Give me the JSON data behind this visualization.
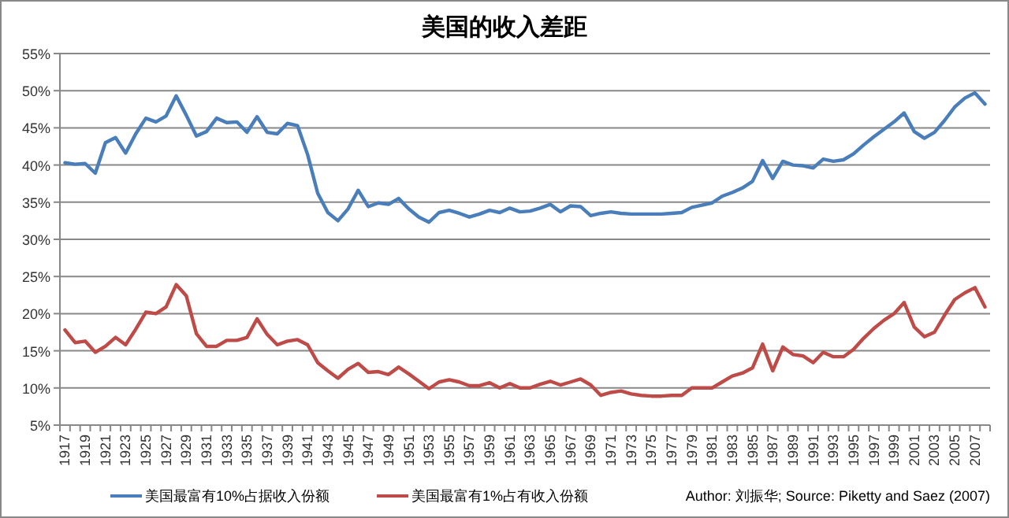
{
  "chart_data": {
    "type": "line",
    "title": "美国的收入差距",
    "categories": [
      "1917",
      null,
      "1919",
      null,
      "1921",
      null,
      "1923",
      null,
      "1925",
      null,
      "1927",
      null,
      "1929",
      null,
      "1931",
      null,
      "1933",
      null,
      "1935",
      null,
      "1937",
      null,
      "1939",
      null,
      "1941",
      null,
      "1943",
      null,
      "1945",
      null,
      "1947",
      null,
      "1949",
      null,
      "1951",
      null,
      "1953",
      null,
      "1955",
      null,
      "1957",
      null,
      "1959",
      null,
      "1961",
      null,
      "1963",
      null,
      "1965",
      null,
      "1967",
      null,
      "1969",
      null,
      "1971",
      null,
      "1973",
      null,
      "1975",
      null,
      "1977",
      null,
      "1979",
      null,
      "1981",
      null,
      "1983",
      null,
      "1985",
      null,
      "1987",
      null,
      "1989",
      null,
      "1991",
      null,
      "1993",
      null,
      "1995",
      null,
      "1997",
      null,
      "1999",
      null,
      "2001",
      null,
      "2003",
      null,
      "2005",
      null,
      "2007",
      null
    ],
    "series": [
      {
        "name": "美国最富有10%占据收入份额",
        "color": "#4a7ebb",
        "values": [
          40.3,
          40.1,
          40.2,
          38.9,
          43.0,
          43.7,
          41.6,
          44.2,
          46.3,
          45.8,
          46.6,
          49.3,
          46.7,
          43.9,
          44.5,
          46.3,
          45.7,
          45.8,
          44.4,
          46.5,
          44.4,
          44.2,
          45.6,
          45.3,
          41.4,
          36.2,
          33.6,
          32.5,
          34.1,
          36.6,
          34.4,
          34.9,
          34.7,
          35.5,
          34.1,
          33.0,
          32.3,
          33.6,
          33.9,
          33.5,
          33.0,
          33.4,
          33.9,
          33.6,
          34.2,
          33.7,
          33.8,
          34.2,
          34.7,
          33.7,
          34.5,
          34.4,
          33.2,
          33.5,
          33.7,
          33.5,
          33.4,
          33.4,
          33.4,
          33.4,
          33.5,
          33.6,
          34.3,
          34.6,
          34.9,
          35.8,
          36.3,
          36.9,
          37.8,
          40.6,
          38.2,
          40.5,
          40.0,
          39.9,
          39.6,
          40.8,
          40.5,
          40.7,
          41.5,
          42.7,
          43.8,
          44.8,
          45.8,
          47.0,
          44.5,
          43.6,
          44.4,
          46.0,
          47.8,
          49.0,
          49.7,
          48.2
        ]
      },
      {
        "name": "美国最富有1%占有收入份额",
        "color": "#be4b48",
        "values": [
          17.8,
          16.1,
          16.3,
          14.8,
          15.6,
          16.8,
          15.8,
          17.9,
          20.2,
          20.0,
          20.9,
          23.9,
          22.4,
          17.3,
          15.6,
          15.6,
          16.4,
          16.4,
          16.8,
          19.3,
          17.2,
          15.8,
          16.3,
          16.5,
          15.8,
          13.4,
          12.3,
          11.3,
          12.5,
          13.3,
          12.1,
          12.2,
          11.8,
          12.8,
          11.9,
          10.9,
          9.9,
          10.8,
          11.1,
          10.8,
          10.3,
          10.3,
          10.7,
          10.0,
          10.6,
          10.0,
          10.0,
          10.5,
          10.9,
          10.4,
          10.8,
          11.2,
          10.4,
          9.0,
          9.4,
          9.6,
          9.2,
          9.0,
          8.9,
          8.9,
          9.0,
          9.0,
          10.0,
          10.0,
          10.0,
          10.8,
          11.6,
          12.0,
          12.7,
          15.9,
          12.3,
          15.5,
          14.5,
          14.3,
          13.4,
          14.8,
          14.2,
          14.2,
          15.2,
          16.7,
          18.0,
          19.1,
          20.0,
          21.5,
          18.2,
          16.9,
          17.5,
          19.8,
          21.9,
          22.8,
          23.5,
          20.9
        ]
      }
    ],
    "ylim": [
      5,
      55
    ],
    "yticks": [
      {
        "value": 5,
        "label": "5%"
      },
      {
        "value": 10,
        "label": "10%"
      },
      {
        "value": 15,
        "label": "15%"
      },
      {
        "value": 20,
        "label": "20%"
      },
      {
        "value": 25,
        "label": "25%"
      },
      {
        "value": 30,
        "label": "30%"
      },
      {
        "value": 35,
        "label": "35%"
      },
      {
        "value": 40,
        "label": "40%"
      },
      {
        "value": 45,
        "label": "45%"
      },
      {
        "value": 50,
        "label": "50%"
      },
      {
        "value": 55,
        "label": "55%"
      }
    ],
    "grid": "y",
    "legend": "bottom",
    "marker": "none",
    "line_style": "solid",
    "annotations": [
      "Author: 刘振华; Source: Piketty and Saez (2007)"
    ]
  }
}
